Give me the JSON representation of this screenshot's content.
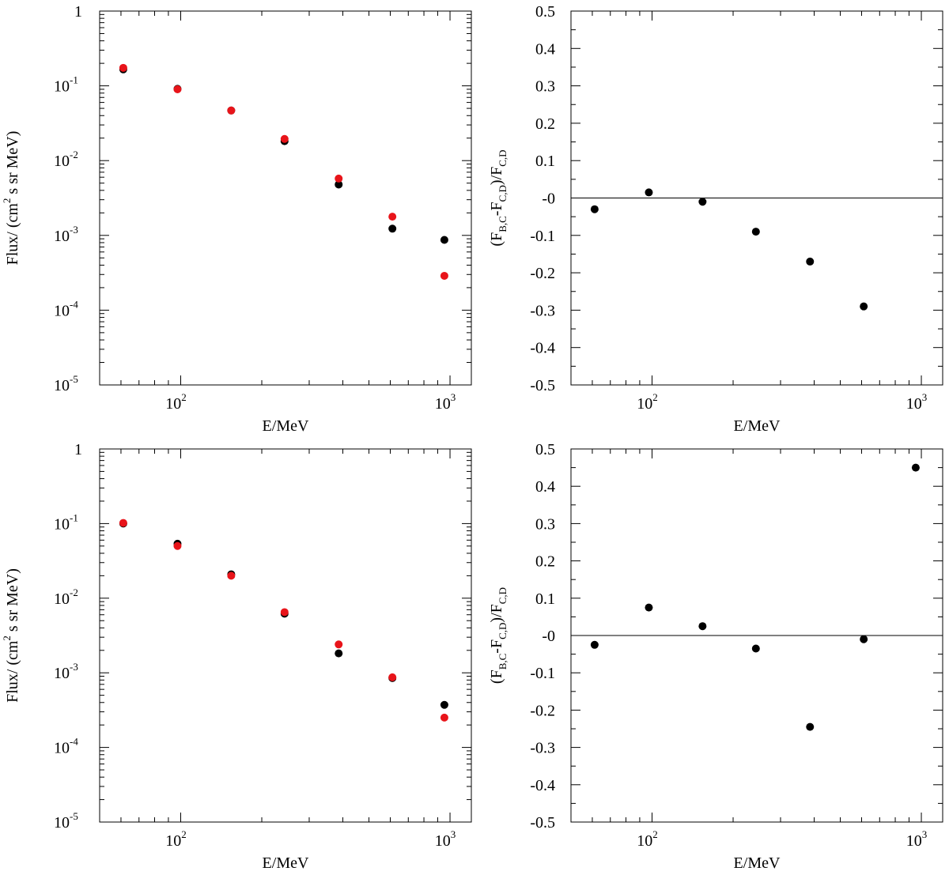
{
  "colors": {
    "series_black": "#000000",
    "series_red": "#e8141a",
    "axis": "#000000"
  },
  "chart_data": [
    {
      "type": "scatter",
      "panel": "top-left",
      "xscale": "log",
      "yscale": "log",
      "xlim": [
        50,
        1200
      ],
      "ylim": [
        1e-05,
        1
      ],
      "xlabel": "E/MeV",
      "ylabel": {
        "pre": "Flux/ (cm",
        "sup": "2",
        "post": " s sr MeV)"
      },
      "x_ticks": [
        {
          "base": "10",
          "exp": "2"
        },
        {
          "base": "10",
          "exp": "3"
        }
      ],
      "y_ticks": [
        {
          "base": "1",
          "exp": ""
        },
        {
          "base": "10",
          "exp": "-1"
        },
        {
          "base": "10",
          "exp": "-2"
        },
        {
          "base": "10",
          "exp": "-3"
        },
        {
          "base": "10",
          "exp": "-4"
        },
        {
          "base": "10",
          "exp": "-5"
        }
      ],
      "series": [
        {
          "color": "#000000",
          "x": [
            61.2,
            97.3,
            154,
            243,
            386,
            611,
            953
          ],
          "y": [
            0.166,
            0.0912,
            0.0468,
            0.0182,
            0.00479,
            0.00123,
            0.000871
          ]
        },
        {
          "color": "#e8141a",
          "x": [
            61.2,
            97.3,
            154,
            243,
            386,
            611,
            953
          ],
          "y": [
            0.174,
            0.0898,
            0.0468,
            0.0195,
            0.00575,
            0.00178,
            0.000288
          ]
        }
      ]
    },
    {
      "type": "scatter",
      "panel": "top-right",
      "xscale": "log",
      "yscale": "linear",
      "xlim": [
        50,
        1200
      ],
      "ylim": [
        -0.5,
        0.5
      ],
      "xlabel": "E/MeV",
      "ylabel": {
        "t1": "(F",
        "s1": "B,C",
        "t2": "-F",
        "s2": "C,D",
        "t3": ")/F",
        "s3": "C,D"
      },
      "x_ticks": [
        {
          "base": "10",
          "exp": "2"
        },
        {
          "base": "10",
          "exp": "3"
        }
      ],
      "y_ticks": [
        "0.5",
        "0.4",
        "0.3",
        "0.2",
        "0.1",
        "-0",
        "-0.1",
        "-0.2",
        "-0.3",
        "-0.4",
        "-0.5"
      ],
      "zero_line": true,
      "series": [
        {
          "color": "#000000",
          "x": [
            61.2,
            97.3,
            154,
            243,
            386,
            611
          ],
          "y": [
            -0.03,
            0.015,
            -0.01,
            -0.09,
            -0.17,
            -0.29
          ]
        }
      ]
    },
    {
      "type": "scatter",
      "panel": "bottom-left",
      "xscale": "log",
      "yscale": "log",
      "xlim": [
        50,
        1200
      ],
      "ylim": [
        1e-05,
        1
      ],
      "xlabel": "E/MeV",
      "ylabel": {
        "pre": "Flux/ (cm",
        "sup": "2",
        "post": " s sr MeV)"
      },
      "x_ticks": [
        {
          "base": "10",
          "exp": "2"
        },
        {
          "base": "10",
          "exp": "3"
        }
      ],
      "y_ticks": [
        {
          "base": "1",
          "exp": ""
        },
        {
          "base": "10",
          "exp": "-1"
        },
        {
          "base": "10",
          "exp": "-2"
        },
        {
          "base": "10",
          "exp": "-3"
        },
        {
          "base": "10",
          "exp": "-4"
        },
        {
          "base": "10",
          "exp": "-5"
        }
      ],
      "series": [
        {
          "color": "#000000",
          "x": [
            61.2,
            97.3,
            154,
            243,
            386,
            611,
            953
          ],
          "y": [
            0.1,
            0.0537,
            0.0209,
            0.0062,
            0.00182,
            0.000851,
            0.000372
          ]
        },
        {
          "color": "#e8141a",
          "x": [
            61.2,
            97.3,
            154,
            243,
            386,
            611,
            953
          ],
          "y": [
            0.102,
            0.0501,
            0.02,
            0.0065,
            0.0024,
            0.000871,
            0.000251
          ]
        }
      ]
    },
    {
      "type": "scatter",
      "panel": "bottom-right",
      "xscale": "log",
      "yscale": "linear",
      "xlim": [
        50,
        1200
      ],
      "ylim": [
        -0.5,
        0.5
      ],
      "xlabel": "E/MeV",
      "ylabel": {
        "t1": "(F",
        "s1": "B,C",
        "t2": "-F",
        "s2": "C,D",
        "t3": ")/F",
        "s3": "C,D"
      },
      "x_ticks": [
        {
          "base": "10",
          "exp": "2"
        },
        {
          "base": "10",
          "exp": "3"
        }
      ],
      "y_ticks": [
        "0.5",
        "0.4",
        "0.3",
        "0.2",
        "0.1",
        "-0",
        "-0.1",
        "-0.2",
        "-0.3",
        "-0.4",
        "-0.5"
      ],
      "zero_line": true,
      "series": [
        {
          "color": "#000000",
          "x": [
            61.2,
            97.3,
            154,
            243,
            386,
            611,
            953
          ],
          "y": [
            -0.025,
            0.075,
            0.025,
            -0.035,
            -0.245,
            -0.01,
            0.45
          ]
        }
      ]
    }
  ]
}
